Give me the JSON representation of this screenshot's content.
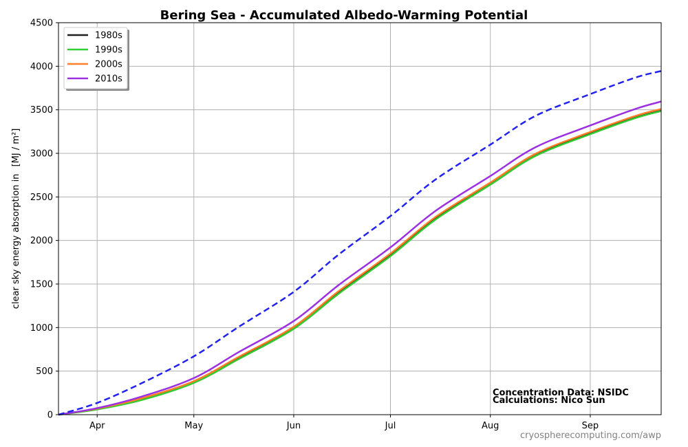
{
  "chart_data": {
    "type": "line",
    "title": "Bering Sea - Accumulated Albedo-Warming Potential",
    "xlabel": "",
    "ylabel": "clear sky energy absorption in",
    "ylabel_unit": "[MJ / m²]",
    "x_ticks": [
      "Apr",
      "May",
      "Jun",
      "Jul",
      "Aug",
      "Sep"
    ],
    "x_tick_dates": [
      "04-01",
      "05-01",
      "06-01",
      "07-01",
      "08-01",
      "09-01"
    ],
    "xlim": [
      "03-20",
      "09-23"
    ],
    "ylim": [
      0,
      4500
    ],
    "y_ticks": [
      0,
      500,
      1000,
      1500,
      2000,
      2500,
      3000,
      3500,
      4000,
      4500
    ],
    "grid": true,
    "legend_position": "top-left",
    "x": [
      "03-20",
      "04-01",
      "04-15",
      "05-01",
      "05-15",
      "06-01",
      "06-15",
      "07-01",
      "07-15",
      "08-01",
      "08-15",
      "09-01",
      "09-15",
      "09-23"
    ],
    "series": [
      {
        "name": "1980s",
        "color": "#1f1f1f",
        "style": "solid",
        "values": [
          0,
          65,
          180,
          375,
          650,
          995,
          1400,
          1830,
          2250,
          2650,
          2980,
          3230,
          3410,
          3490
        ]
      },
      {
        "name": "1990s",
        "color": "#33cc33",
        "style": "solid",
        "values": [
          0,
          60,
          170,
          365,
          640,
          985,
          1390,
          1820,
          2240,
          2640,
          2970,
          3220,
          3405,
          3485
        ]
      },
      {
        "name": "2000s",
        "color": "#ff7f27",
        "style": "solid",
        "values": [
          0,
          70,
          190,
          385,
          665,
          1010,
          1420,
          1850,
          2270,
          2665,
          2995,
          3245,
          3430,
          3510
        ]
      },
      {
        "name": "2010s",
        "color": "#9b30e0",
        "style": "solid",
        "values": [
          0,
          75,
          210,
          420,
          720,
          1075,
          1490,
          1920,
          2340,
          2740,
          3070,
          3320,
          3510,
          3595
        ]
      },
      {
        "name": "",
        "color": "#2222ee",
        "style": "dashed",
        "values": [
          0,
          135,
          365,
          670,
          1010,
          1410,
          1840,
          2280,
          2700,
          3100,
          3430,
          3680,
          3870,
          3945
        ]
      }
    ],
    "annotations": [
      "Concentration Data: NSIDC",
      "Calculations: Nico Sun"
    ]
  },
  "credit": "cryospherecomputing.com/awp"
}
